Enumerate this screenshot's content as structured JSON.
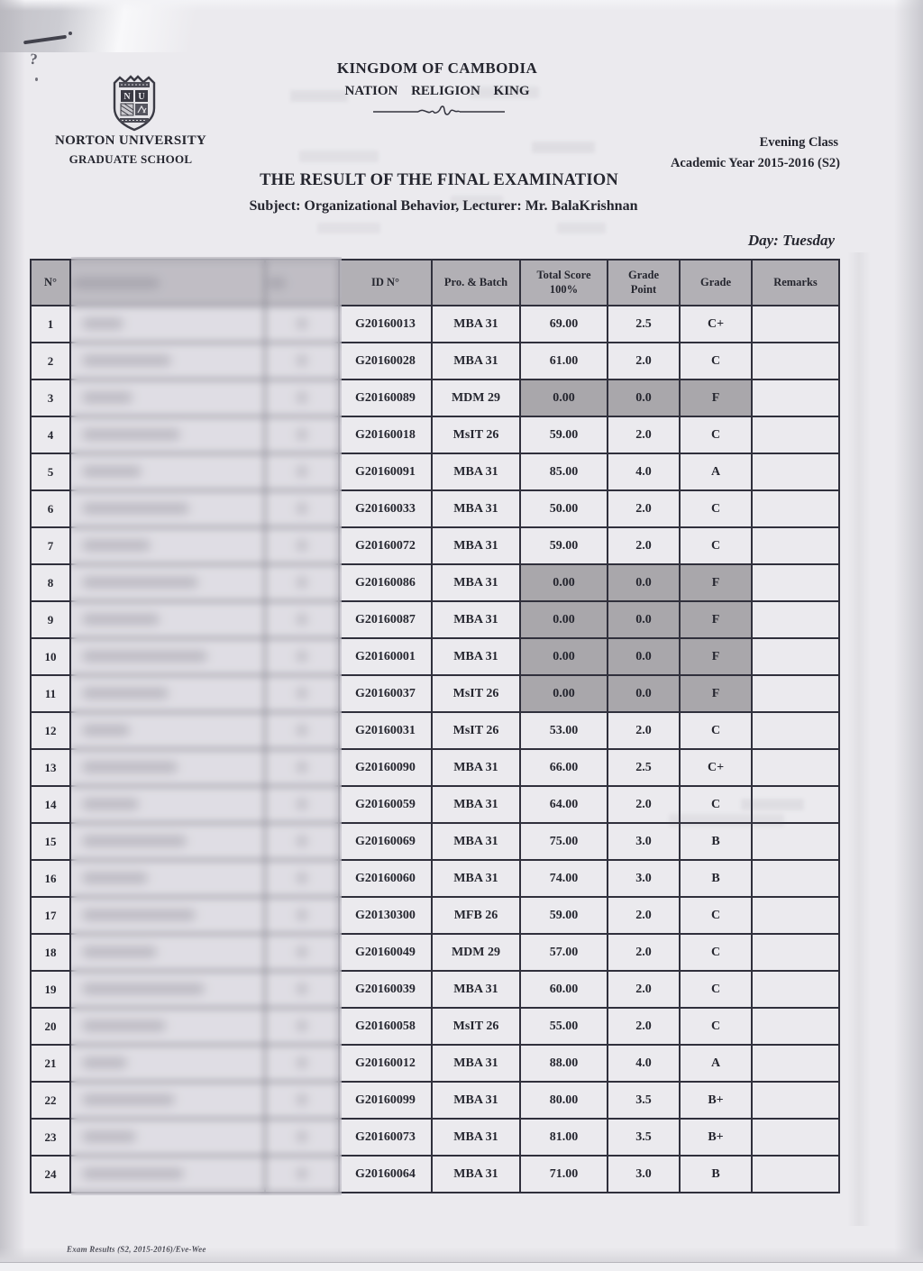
{
  "document": {
    "kingdom": "KINGDOM OF CAMBODIA",
    "motto": "NATION RELIGION KING",
    "university": "NORTON UNIVERSITY",
    "school": "GRADUATE SCHOOL",
    "class_session": "Evening Class",
    "academic_year": "Academic Year 2015-2016 (S2)",
    "title": "THE RESULT OF THE FINAL EXAMINATION",
    "subject_line": "Subject: Organizational Behavior, Lecturer: Mr. BalaKrishnan",
    "day": "Day: Tuesday",
    "footer_note": "Exam Results (S2, 2015-2016)/Eve-Wee",
    "handwritten_mark": "?"
  },
  "table": {
    "headers": {
      "no": "N°",
      "name": "",
      "sex": "",
      "id": "ID N°",
      "batch": "Pro. & Batch",
      "score_line1": "Total Score",
      "score_line2": "100%",
      "point_line1": "Grade",
      "point_line2": "Point",
      "grade": "Grade",
      "remarks": "Remarks"
    },
    "rows": [
      {
        "no": "1",
        "id": "G20160013",
        "batch": "MBA 31",
        "score": "69.00",
        "point": "2.5",
        "grade": "C+",
        "remarks": "",
        "fail": false
      },
      {
        "no": "2",
        "id": "G20160028",
        "batch": "MBA 31",
        "score": "61.00",
        "point": "2.0",
        "grade": "C",
        "remarks": "",
        "fail": false
      },
      {
        "no": "3",
        "id": "G20160089",
        "batch": "MDM 29",
        "score": "0.00",
        "point": "0.0",
        "grade": "F",
        "remarks": "",
        "fail": true
      },
      {
        "no": "4",
        "id": "G20160018",
        "batch": "MsIT 26",
        "score": "59.00",
        "point": "2.0",
        "grade": "C",
        "remarks": "",
        "fail": false
      },
      {
        "no": "5",
        "id": "G20160091",
        "batch": "MBA 31",
        "score": "85.00",
        "point": "4.0",
        "grade": "A",
        "remarks": "",
        "fail": false
      },
      {
        "no": "6",
        "id": "G20160033",
        "batch": "MBA 31",
        "score": "50.00",
        "point": "2.0",
        "grade": "C",
        "remarks": "",
        "fail": false
      },
      {
        "no": "7",
        "id": "G20160072",
        "batch": "MBA 31",
        "score": "59.00",
        "point": "2.0",
        "grade": "C",
        "remarks": "",
        "fail": false
      },
      {
        "no": "8",
        "id": "G20160086",
        "batch": "MBA 31",
        "score": "0.00",
        "point": "0.0",
        "grade": "F",
        "remarks": "",
        "fail": true
      },
      {
        "no": "9",
        "id": "G20160087",
        "batch": "MBA 31",
        "score": "0.00",
        "point": "0.0",
        "grade": "F",
        "remarks": "",
        "fail": true
      },
      {
        "no": "10",
        "id": "G20160001",
        "batch": "MBA 31",
        "score": "0.00",
        "point": "0.0",
        "grade": "F",
        "remarks": "",
        "fail": true
      },
      {
        "no": "11",
        "id": "G20160037",
        "batch": "MsIT 26",
        "score": "0.00",
        "point": "0.0",
        "grade": "F",
        "remarks": "",
        "fail": true
      },
      {
        "no": "12",
        "id": "G20160031",
        "batch": "MsIT 26",
        "score": "53.00",
        "point": "2.0",
        "grade": "C",
        "remarks": "",
        "fail": false
      },
      {
        "no": "13",
        "id": "G20160090",
        "batch": "MBA 31",
        "score": "66.00",
        "point": "2.5",
        "grade": "C+",
        "remarks": "",
        "fail": false
      },
      {
        "no": "14",
        "id": "G20160059",
        "batch": "MBA 31",
        "score": "64.00",
        "point": "2.0",
        "grade": "C",
        "remarks": "",
        "fail": false
      },
      {
        "no": "15",
        "id": "G20160069",
        "batch": "MBA 31",
        "score": "75.00",
        "point": "3.0",
        "grade": "B",
        "remarks": "",
        "fail": false
      },
      {
        "no": "16",
        "id": "G20160060",
        "batch": "MBA 31",
        "score": "74.00",
        "point": "3.0",
        "grade": "B",
        "remarks": "",
        "fail": false
      },
      {
        "no": "17",
        "id": "G20130300",
        "batch": "MFB 26",
        "score": "59.00",
        "point": "2.0",
        "grade": "C",
        "remarks": "",
        "fail": false
      },
      {
        "no": "18",
        "id": "G20160049",
        "batch": "MDM 29",
        "score": "57.00",
        "point": "2.0",
        "grade": "C",
        "remarks": "",
        "fail": false
      },
      {
        "no": "19",
        "id": "G20160039",
        "batch": "MBA 31",
        "score": "60.00",
        "point": "2.0",
        "grade": "C",
        "remarks": "",
        "fail": false
      },
      {
        "no": "20",
        "id": "G20160058",
        "batch": "MsIT 26",
        "score": "55.00",
        "point": "2.0",
        "grade": "C",
        "remarks": "",
        "fail": false
      },
      {
        "no": "21",
        "id": "G20160012",
        "batch": "MBA 31",
        "score": "88.00",
        "point": "4.0",
        "grade": "A",
        "remarks": "",
        "fail": false
      },
      {
        "no": "22",
        "id": "G20160099",
        "batch": "MBA 31",
        "score": "80.00",
        "point": "3.5",
        "grade": "B+",
        "remarks": "",
        "fail": false
      },
      {
        "no": "23",
        "id": "G20160073",
        "batch": "MBA 31",
        "score": "81.00",
        "point": "3.5",
        "grade": "B+",
        "remarks": "",
        "fail": false
      },
      {
        "no": "24",
        "id": "G20160064",
        "batch": "MBA 31",
        "score": "71.00",
        "point": "3.0",
        "grade": "B",
        "remarks": "",
        "fail": false
      }
    ]
  },
  "colors": {
    "paper": "#ebeaee",
    "table_border": "#30303c",
    "header_cell_bg": "#b2b0b5",
    "fail_cell_bg": "#a9a7ab",
    "ink": "#25262f"
  }
}
